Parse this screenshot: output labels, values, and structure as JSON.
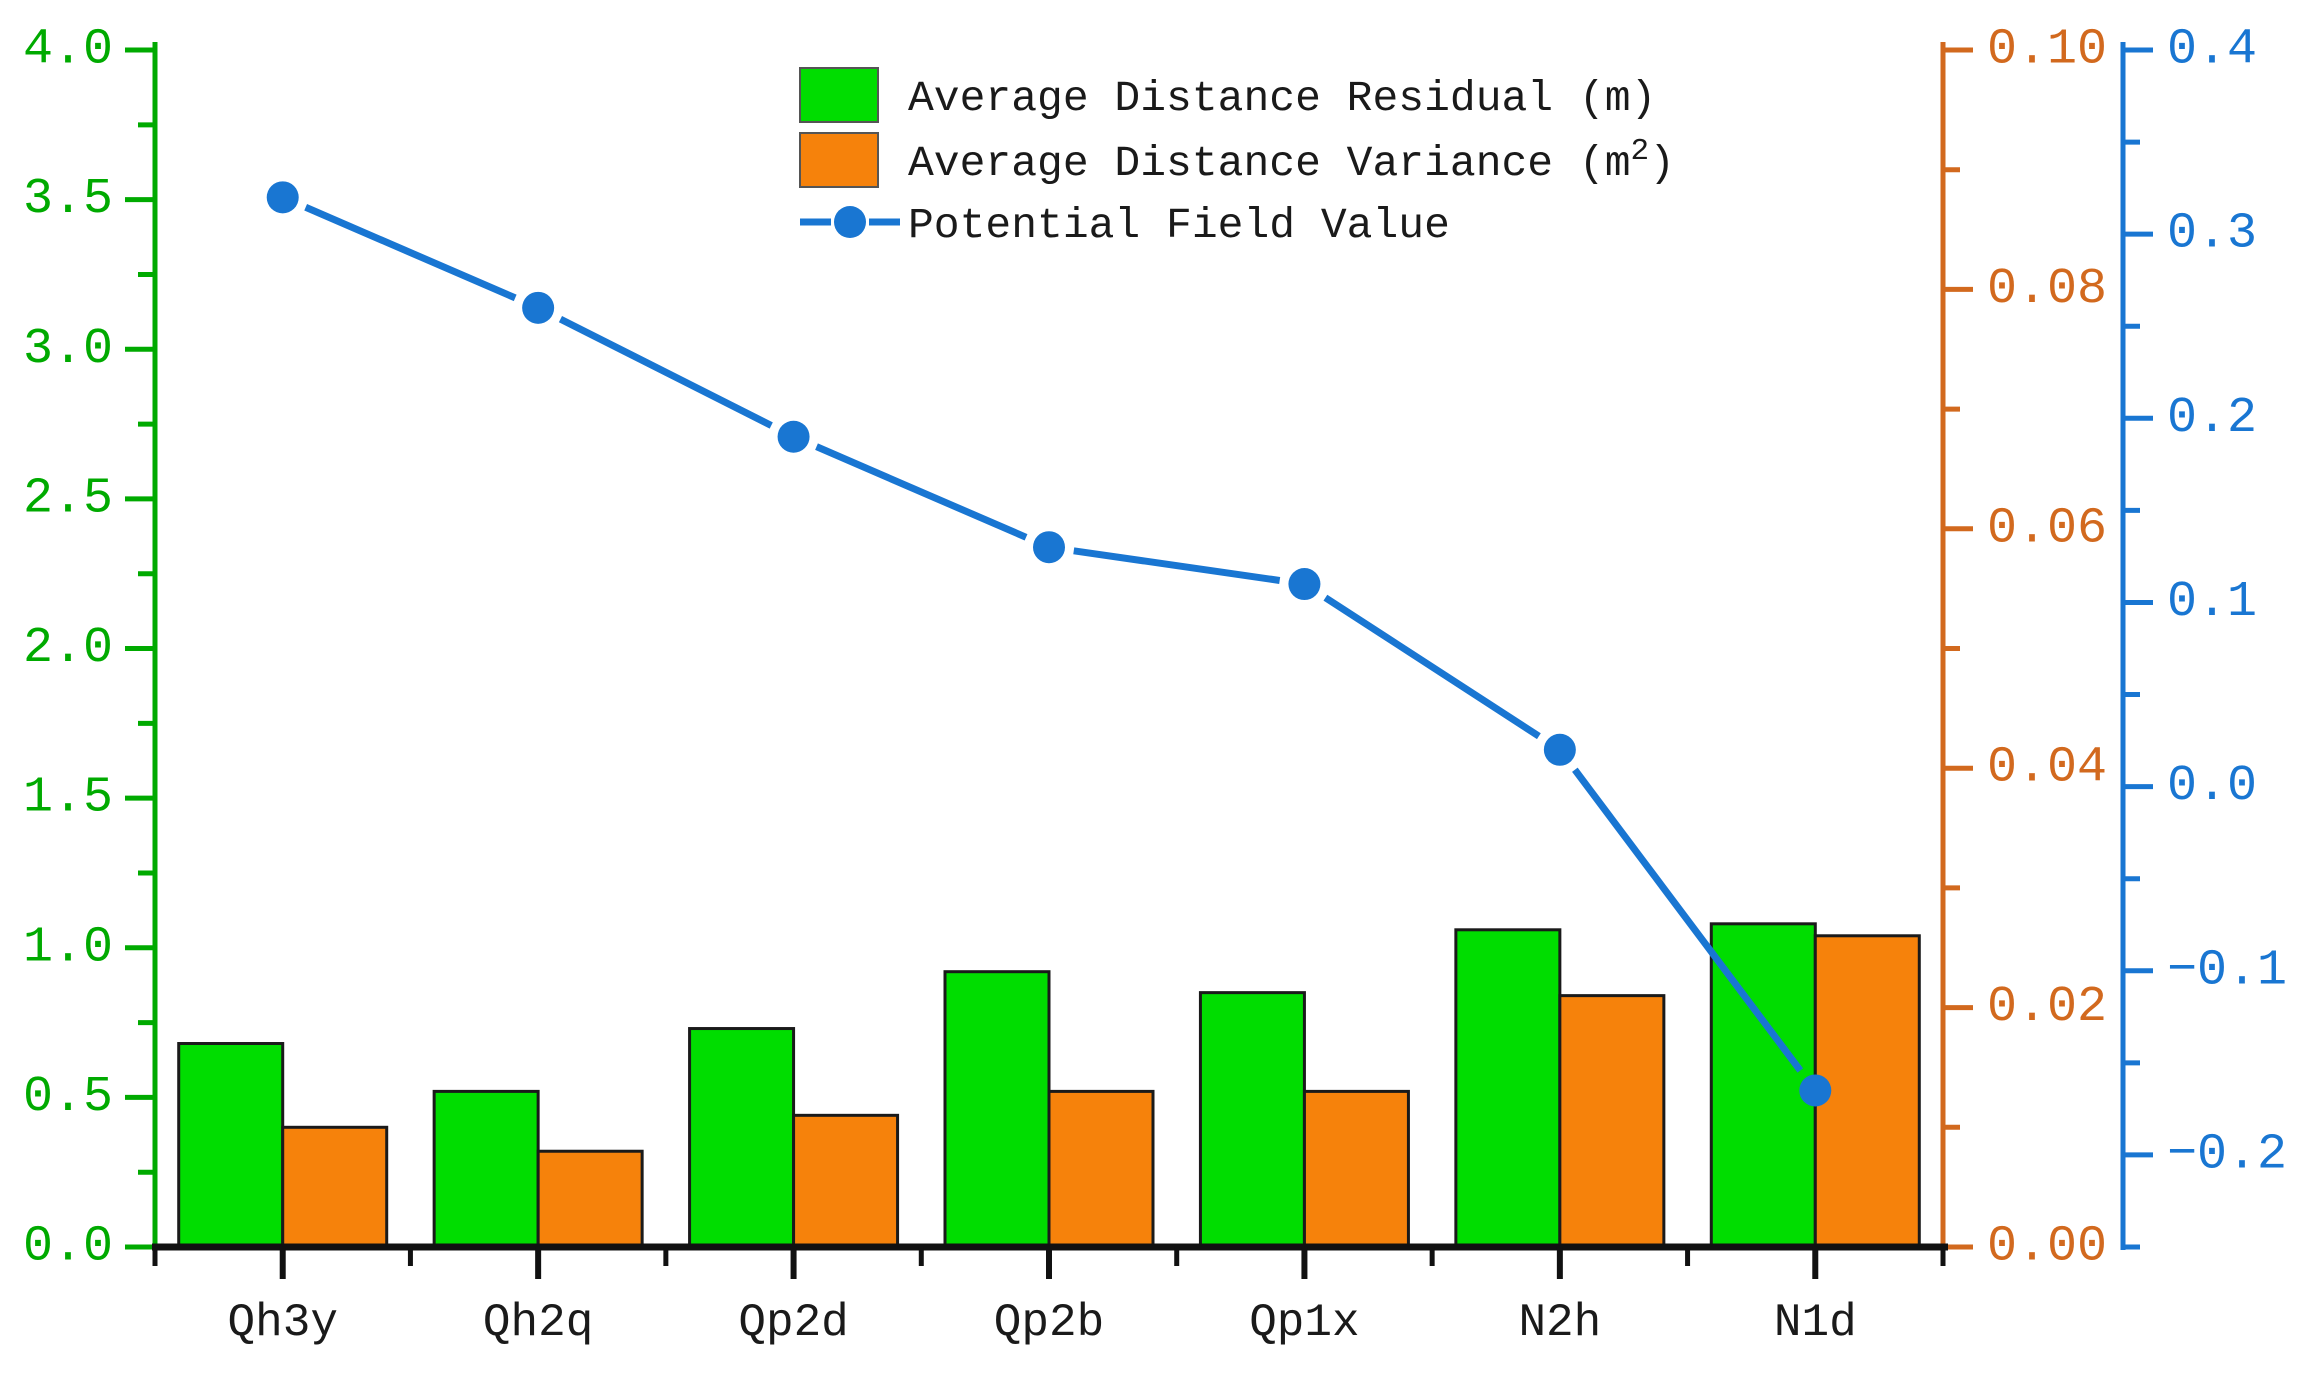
{
  "chart_data": {
    "type": "combo-bar-line",
    "categories": [
      "Qh3y",
      "Qh2q",
      "Qp2d",
      "Qp2b",
      "Qp1x",
      "N2h",
      "N1d"
    ],
    "series": [
      {
        "name": "Average Distance Residual (m)",
        "chart_type": "bar",
        "axis": "left",
        "color": "#00dd00",
        "values": [
          0.68,
          0.52,
          0.73,
          0.92,
          0.85,
          1.06,
          1.08
        ]
      },
      {
        "name": "Average Distance Variance (m²)",
        "chart_type": "bar",
        "axis": "right_inner",
        "color": "#f6820b",
        "values": [
          0.01,
          0.008,
          0.011,
          0.013,
          0.013,
          0.021,
          0.026
        ]
      },
      {
        "name": "Potential Field Value",
        "chart_type": "line",
        "axis": "right_outer",
        "color": "#1976d2",
        "values": [
          0.32,
          0.26,
          0.19,
          0.13,
          0.11,
          0.02,
          -0.165
        ]
      }
    ],
    "axes": {
      "left": {
        "color": "#00aa00",
        "min": 0,
        "max": 4,
        "major_step": 0.5,
        "minor_step": 0.25,
        "tick_labels": [
          "0.0",
          "0.5",
          "1.0",
          "1.5",
          "2.0",
          "2.5",
          "3.0",
          "3.5",
          "4.0"
        ]
      },
      "right_inner": {
        "color": "#d2691e",
        "min": 0,
        "max": 0.1,
        "major_step": 0.02,
        "minor_step": 0.01,
        "tick_labels": [
          "0.00",
          "0.02",
          "0.04",
          "0.06",
          "0.08",
          "0.10"
        ]
      },
      "right_outer": {
        "color": "#1976d2",
        "min": -0.25,
        "max": 0.4,
        "major_step": 0.1,
        "minor_step": 0.05,
        "tick_labels": [
          "−0.2",
          "−0.1",
          "0.0",
          "0.1",
          "0.2",
          "0.3",
          "0.4"
        ]
      }
    },
    "legend": {
      "position": "top-center",
      "entries": [
        "Average Distance Residual (m)",
        "Average Distance Variance (m²)",
        "Potential Field Value"
      ]
    },
    "grid": false,
    "background": "#ffffff",
    "text_color": "#1a1a1a"
  }
}
